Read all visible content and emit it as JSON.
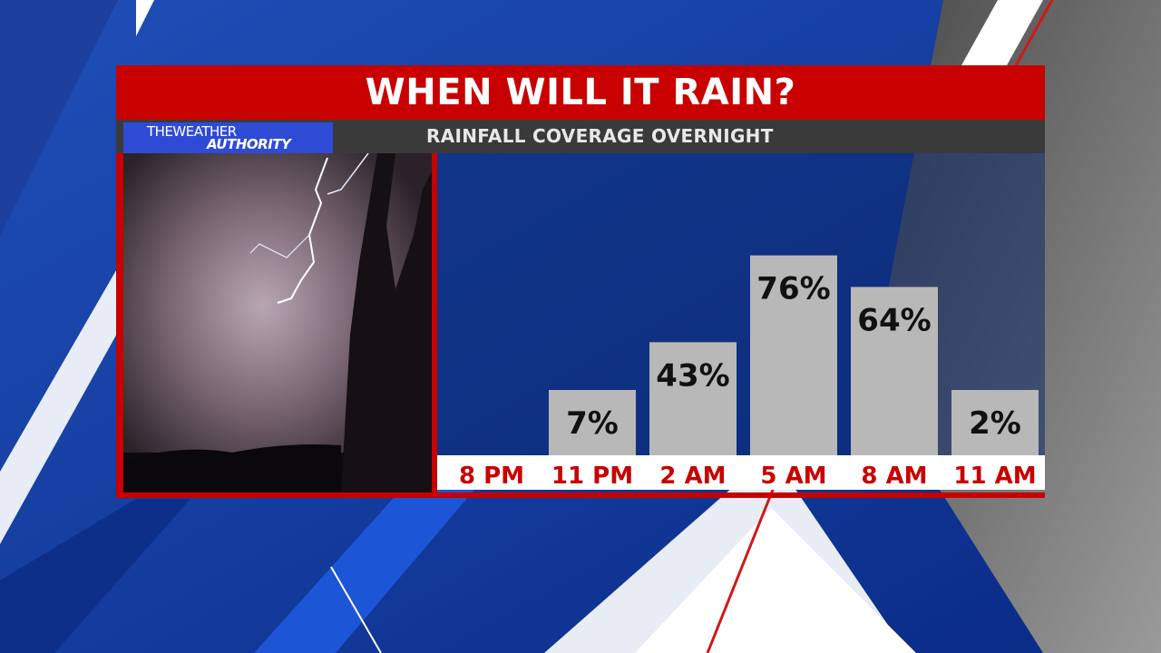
{
  "header": {
    "title": "WHEN WILL IT RAIN?",
    "subtitle": "RAINFALL COVERAGE OVERNIGHT"
  },
  "logo": {
    "line1": "THEWEATHER",
    "line2": "AUTHORITY"
  },
  "colors": {
    "title_bar": "#c80000",
    "subtitle_bar": "#3a3a3a",
    "bar_fill": "#b8b8b8",
    "label_text": "#c80000",
    "value_text": "#111111",
    "logo_bg": "#2f4bd6"
  },
  "chart_data": {
    "type": "bar",
    "categories": [
      "8 PM",
      "11 PM",
      "2 AM",
      "5 AM",
      "8 AM",
      "11 AM"
    ],
    "values": [
      0,
      7,
      43,
      76,
      64,
      2
    ],
    "value_labels": [
      "",
      "7%",
      "43%",
      "76%",
      "64%",
      "2%"
    ],
    "ylim": [
      0,
      100
    ],
    "grid": false,
    "legend": "none"
  }
}
